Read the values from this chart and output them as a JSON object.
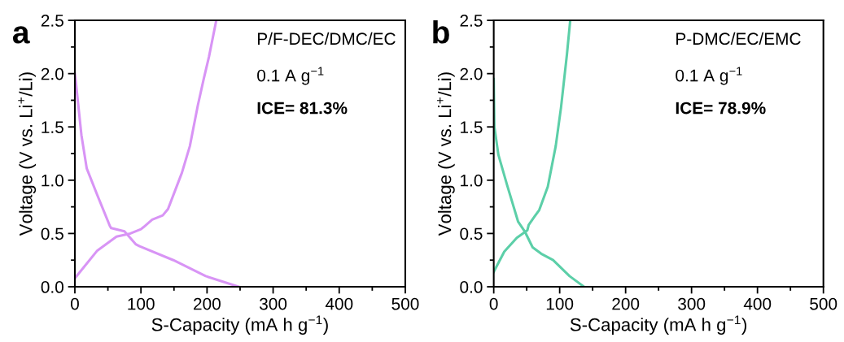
{
  "chart_data": [
    {
      "type": "line",
      "xlabel": "S-Capacity (mA h g$^{−1}$)",
      "ylabel": "Voltage (V vs. Li$^{+}$/Li)",
      "annotations": [
        "a",
        "P/F-DEC/DMC/EC",
        "0.1 A g$^{−1}$",
        "ICE= 81.3%"
      ],
      "series": [
        {
          "color": "#d894f5",
          "x": [
            0,
            1,
            10,
            18,
            34,
            53,
            55,
            75,
            92,
            98,
            149,
            198,
            248
          ],
          "values": [
            2.0,
            1.95,
            1.42,
            1.11,
            0.86,
            0.57,
            0.55,
            0.52,
            0.4,
            0.38,
            0.25,
            0.1,
            0.0
          ]
        },
        {
          "color": "#d894f5",
          "x": [
            0,
            34,
            63,
            84,
            100,
            104,
            117,
            133,
            141,
            162,
            174,
            186,
            195,
            203,
            214
          ],
          "values": [
            0.08,
            0.34,
            0.47,
            0.5,
            0.54,
            0.56,
            0.63,
            0.67,
            0.73,
            1.07,
            1.32,
            1.7,
            1.95,
            2.16,
            2.5
          ]
        }
      ],
      "xlim": [
        0,
        500
      ],
      "xticks": [
        0,
        100,
        200,
        300,
        400,
        500
      ],
      "ylim": [
        0,
        2.5
      ],
      "yticks": [
        {
          "value": 0,
          "label": "0.0"
        },
        {
          "value": 0.5,
          "label": "0.5"
        },
        {
          "value": 1,
          "label": "1.0"
        },
        {
          "value": 1.5,
          "label": "1.5"
        },
        {
          "value": 2,
          "label": "2.0"
        },
        {
          "value": 2.5,
          "label": "2.5"
        }
      ],
      "grid": false,
      "legend": false,
      "marker": "none",
      "line_style": "solid"
    },
    {
      "type": "line",
      "xlabel": "S-Capacity (mA h g$^{−1}$)",
      "ylabel": "Voltage (V vs. Li$^{+}$/Li)",
      "annotations": [
        "b",
        "P-DMC/EC/EMC",
        "0.1 A g$^{−1}$",
        "ICE= 78.9%"
      ],
      "series": [
        {
          "color": "#5ccfa8",
          "x": [
            0,
            1,
            7,
            20,
            37,
            47,
            59,
            72,
            90,
            115,
            137
          ],
          "values": [
            1.95,
            1.5,
            1.24,
            0.96,
            0.61,
            0.52,
            0.37,
            0.31,
            0.25,
            0.1,
            0.0
          ]
        },
        {
          "color": "#5ccfa8",
          "x": [
            0,
            16,
            35,
            51,
            53,
            62,
            69,
            82,
            94,
            102,
            111,
            116
          ],
          "values": [
            0.14,
            0.33,
            0.46,
            0.53,
            0.58,
            0.66,
            0.72,
            0.94,
            1.32,
            1.68,
            2.18,
            2.5
          ]
        }
      ],
      "xlim": [
        0,
        500
      ],
      "xticks": [
        0,
        100,
        200,
        300,
        400,
        500
      ],
      "ylim": [
        0,
        2.5
      ],
      "yticks": [
        {
          "value": 0,
          "label": "0.0"
        },
        {
          "value": 0.5,
          "label": "0.5"
        },
        {
          "value": 1,
          "label": "1.0"
        },
        {
          "value": 1.5,
          "label": "1.5"
        },
        {
          "value": 2,
          "label": "2.0"
        },
        {
          "value": 2.5,
          "label": "2.5"
        }
      ],
      "grid": false,
      "legend": false,
      "marker": "none",
      "line_style": "solid"
    }
  ]
}
